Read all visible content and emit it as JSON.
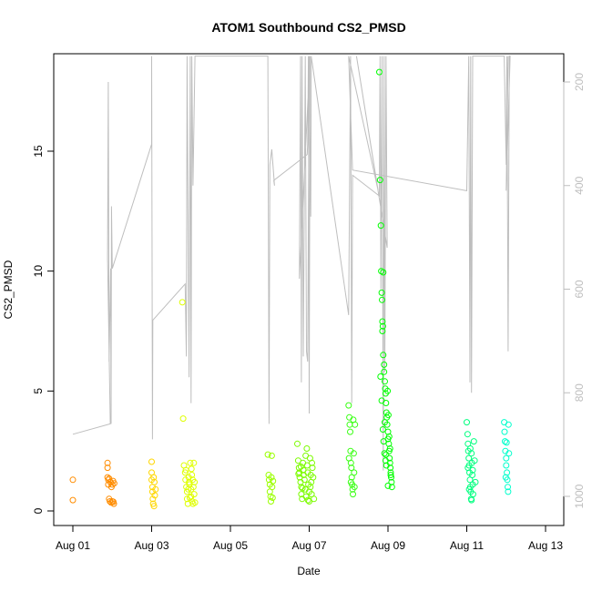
{
  "chart_data": {
    "type": "scatter",
    "title": "ATOM1 Southbound CS2_PMSD",
    "xlabel": "Date",
    "ylabel": "CS2_PMSD",
    "x_ticks": [
      "Aug 01",
      "Aug 03",
      "Aug 05",
      "Aug 07",
      "Aug 09",
      "Aug 11",
      "Aug 13"
    ],
    "x_range_days": [
      0.0,
      12.55
    ],
    "ylim": [
      0,
      19
    ],
    "y_ticks": [
      0,
      5,
      10,
      15
    ],
    "y2_ticks": [
      200,
      400,
      600,
      800,
      1000
    ],
    "y2lim": [
      1100,
      150
    ],
    "y2_color": "#bebebe",
    "grid": false,
    "series": [
      {
        "color": "#ff8c00",
        "points": [
          [
            0.0,
            1.3
          ],
          [
            0.0,
            0.45
          ],
          [
            0.88,
            2.0
          ],
          [
            0.88,
            1.8
          ],
          [
            0.88,
            1.4
          ],
          [
            0.9,
            1.3
          ],
          [
            0.9,
            1.1
          ],
          [
            0.92,
            0.5
          ],
          [
            0.94,
            0.4
          ],
          [
            0.95,
            1.2
          ],
          [
            0.97,
            0.35
          ],
          [
            0.98,
            1.0
          ],
          [
            1.0,
            0.4
          ],
          [
            1.02,
            1.25
          ],
          [
            1.04,
            0.3
          ],
          [
            1.05,
            1.15
          ],
          [
            0.92,
            1.35
          ],
          [
            0.96,
            1.2
          ],
          [
            1.0,
            1.1
          ],
          [
            1.03,
            0.38
          ]
        ]
      },
      {
        "color": "#ffd700",
        "points": [
          [
            2.0,
            2.05
          ],
          [
            2.0,
            1.6
          ],
          [
            2.0,
            1.3
          ],
          [
            2.02,
            1.0
          ],
          [
            2.02,
            0.8
          ],
          [
            2.03,
            0.5
          ],
          [
            2.04,
            0.3
          ],
          [
            2.05,
            1.4
          ],
          [
            2.06,
            0.2
          ],
          [
            2.07,
            1.2
          ],
          [
            2.08,
            0.65
          ],
          [
            2.1,
            0.9
          ]
        ]
      },
      {
        "color": "#dfff00",
        "points": [
          [
            2.78,
            8.7
          ],
          [
            2.8,
            3.85
          ],
          [
            2.82,
            1.9
          ],
          [
            2.85,
            1.6
          ],
          [
            2.86,
            1.3
          ],
          [
            2.88,
            1.0
          ],
          [
            2.9,
            0.8
          ],
          [
            2.9,
            0.5
          ],
          [
            2.92,
            0.3
          ],
          [
            2.94,
            1.4
          ],
          [
            2.95,
            1.2
          ],
          [
            2.96,
            1.1
          ],
          [
            2.98,
            2.0
          ],
          [
            3.0,
            0.9
          ],
          [
            3.0,
            0.6
          ],
          [
            3.02,
            1.5
          ],
          [
            3.03,
            0.4
          ],
          [
            3.04,
            1.3
          ],
          [
            3.05,
            0.3
          ],
          [
            3.06,
            1.0
          ],
          [
            3.07,
            2.0
          ],
          [
            3.08,
            0.7
          ],
          [
            3.09,
            1.2
          ],
          [
            3.1,
            0.35
          ],
          [
            2.87,
            1.7
          ],
          [
            2.93,
            0.9
          ],
          [
            2.97,
            0.55
          ],
          [
            3.01,
            1.75
          ]
        ]
      },
      {
        "color": "#9aff00",
        "points": [
          [
            4.95,
            2.35
          ],
          [
            4.97,
            1.5
          ],
          [
            4.98,
            1.3
          ],
          [
            5.0,
            1.1
          ],
          [
            5.0,
            0.8
          ],
          [
            5.02,
            0.6
          ],
          [
            5.03,
            0.4
          ],
          [
            5.04,
            1.4
          ],
          [
            5.05,
            2.3
          ],
          [
            5.06,
            1.0
          ],
          [
            5.07,
            0.55
          ],
          [
            5.08,
            1.25
          ]
        ]
      },
      {
        "color": "#7cfc00",
        "points": [
          [
            5.7,
            2.8
          ],
          [
            5.72,
            2.1
          ],
          [
            5.74,
            1.8
          ],
          [
            5.75,
            1.6
          ],
          [
            5.76,
            1.4
          ],
          [
            5.78,
            1.2
          ],
          [
            5.8,
            1.0
          ],
          [
            5.8,
            0.7
          ],
          [
            5.82,
            0.5
          ],
          [
            5.84,
            2.0
          ],
          [
            5.85,
            1.7
          ],
          [
            5.86,
            1.5
          ],
          [
            5.88,
            1.3
          ],
          [
            5.9,
            0.9
          ],
          [
            5.92,
            0.6
          ],
          [
            5.94,
            2.6
          ],
          [
            5.95,
            1.9
          ],
          [
            5.96,
            1.6
          ],
          [
            5.98,
            1.1
          ],
          [
            6.0,
            0.8
          ],
          [
            6.0,
            0.4
          ],
          [
            6.02,
            2.2
          ],
          [
            6.04,
            1.5
          ],
          [
            6.05,
            1.2
          ],
          [
            6.06,
            0.7
          ],
          [
            6.08,
            1.8
          ],
          [
            6.1,
            1.4
          ],
          [
            6.12,
            0.5
          ],
          [
            5.73,
            1.55
          ],
          [
            5.79,
            1.85
          ],
          [
            5.83,
            0.95
          ],
          [
            5.91,
            2.3
          ],
          [
            5.97,
            0.45
          ],
          [
            6.03,
            1.0
          ],
          [
            6.07,
            2.0
          ]
        ]
      },
      {
        "color": "#39ff14",
        "points": [
          [
            7.0,
            4.4
          ],
          [
            7.02,
            3.9
          ],
          [
            7.03,
            3.6
          ],
          [
            7.04,
            3.3
          ],
          [
            7.05,
            2.5
          ],
          [
            7.06,
            2.0
          ],
          [
            7.07,
            1.8
          ],
          [
            7.08,
            1.4
          ],
          [
            7.09,
            1.1
          ],
          [
            7.1,
            0.9
          ],
          [
            7.11,
            0.7
          ],
          [
            7.12,
            3.8
          ],
          [
            7.13,
            2.4
          ],
          [
            7.14,
            1.6
          ],
          [
            7.15,
            1.0
          ],
          [
            7.16,
            3.6
          ],
          [
            7.01,
            2.2
          ],
          [
            7.06,
            1.2
          ]
        ]
      },
      {
        "color": "#00ff00",
        "points": [
          [
            7.78,
            18.3
          ],
          [
            7.8,
            13.8
          ],
          [
            7.82,
            11.9
          ],
          [
            7.83,
            10.0
          ],
          [
            7.84,
            9.1
          ],
          [
            7.85,
            8.8
          ],
          [
            7.86,
            7.9
          ],
          [
            7.87,
            7.7
          ],
          [
            7.88,
            6.5
          ],
          [
            7.9,
            6.1
          ],
          [
            7.9,
            5.8
          ],
          [
            7.92,
            5.4
          ],
          [
            7.93,
            5.1
          ],
          [
            7.94,
            4.9
          ],
          [
            7.95,
            4.5
          ],
          [
            7.96,
            4.1
          ],
          [
            7.97,
            3.9
          ],
          [
            7.98,
            3.6
          ],
          [
            8.0,
            3.3
          ],
          [
            8.0,
            3.0
          ],
          [
            8.02,
            2.8
          ],
          [
            8.03,
            2.5
          ],
          [
            8.04,
            2.2
          ],
          [
            8.05,
            2.0
          ],
          [
            8.06,
            1.8
          ],
          [
            8.07,
            1.6
          ],
          [
            8.08,
            1.4
          ],
          [
            8.09,
            1.2
          ],
          [
            8.1,
            1.0
          ],
          [
            7.81,
            5.6
          ],
          [
            7.84,
            4.6
          ],
          [
            7.87,
            3.4
          ],
          [
            7.89,
            2.9
          ],
          [
            7.91,
            2.4
          ],
          [
            7.94,
            2.1
          ],
          [
            7.96,
            1.9
          ],
          [
            7.99,
            5.0
          ],
          [
            8.01,
            4.0
          ],
          [
            8.03,
            3.1
          ],
          [
            8.05,
            2.6
          ],
          [
            8.07,
            1.5
          ],
          [
            7.88,
            9.95
          ],
          [
            7.86,
            7.5
          ],
          [
            8.0,
            1.05
          ],
          [
            7.92,
            3.7
          ],
          [
            7.95,
            2.35
          ]
        ]
      },
      {
        "color": "#00ff7f",
        "points": [
          [
            10.0,
            3.7
          ],
          [
            10.02,
            3.2
          ],
          [
            10.03,
            2.8
          ],
          [
            10.04,
            2.5
          ],
          [
            10.05,
            2.2
          ],
          [
            10.06,
            1.9
          ],
          [
            10.07,
            1.6
          ],
          [
            10.08,
            1.3
          ],
          [
            10.09,
            1.0
          ],
          [
            10.1,
            0.8
          ],
          [
            10.11,
            0.5
          ],
          [
            10.12,
            2.4
          ],
          [
            10.13,
            2.0
          ],
          [
            10.14,
            1.5
          ],
          [
            10.15,
            1.1
          ],
          [
            10.16,
            0.7
          ],
          [
            10.18,
            2.9
          ],
          [
            10.2,
            2.1
          ],
          [
            10.22,
            1.2
          ],
          [
            10.03,
            1.8
          ],
          [
            10.06,
            0.9
          ],
          [
            10.09,
            2.6
          ],
          [
            10.12,
            0.45
          ],
          [
            10.15,
            1.7
          ]
        ]
      },
      {
        "color": "#00ffcc",
        "points": [
          [
            10.95,
            3.7
          ],
          [
            10.96,
            3.3
          ],
          [
            10.97,
            2.9
          ],
          [
            10.98,
            2.5
          ],
          [
            11.0,
            2.2
          ],
          [
            11.0,
            1.9
          ],
          [
            11.02,
            1.6
          ],
          [
            11.03,
            1.3
          ],
          [
            11.04,
            1.0
          ],
          [
            11.05,
            0.8
          ],
          [
            11.06,
            3.6
          ],
          [
            11.07,
            2.4
          ],
          [
            10.99,
            1.4
          ],
          [
            11.01,
            2.85
          ]
        ]
      }
    ],
    "overlay_line": {
      "axis": "right",
      "color": "#bebebe",
      "points": [
        [
          0.0,
          880
        ],
        [
          0.95,
          860
        ],
        [
          0.88,
          540
        ],
        [
          0.9,
          200
        ],
        [
          0.92,
          740
        ],
        [
          0.96,
          560
        ],
        [
          0.97,
          860
        ],
        [
          0.98,
          440
        ],
        [
          1.0,
          560
        ],
        [
          2.0,
          320
        ],
        [
          2.0,
          150
        ],
        [
          2.02,
          890
        ],
        [
          2.03,
          660
        ],
        [
          2.85,
          590
        ],
        [
          2.88,
          730
        ],
        [
          2.9,
          150
        ],
        [
          2.95,
          770
        ],
        [
          2.98,
          150
        ],
        [
          3.0,
          820
        ],
        [
          3.02,
          150
        ],
        [
          3.05,
          400
        ],
        [
          3.1,
          150
        ],
        [
          4.95,
          150
        ],
        [
          4.98,
          860
        ],
        [
          5.0,
          360
        ],
        [
          5.05,
          330
        ],
        [
          5.12,
          400
        ],
        [
          5.1,
          390
        ],
        [
          5.95,
          340
        ],
        [
          5.96,
          320
        ],
        [
          5.98,
          150
        ],
        [
          6.0,
          840
        ],
        [
          6.02,
          150
        ],
        [
          5.75,
          580
        ],
        [
          5.78,
          150
        ],
        [
          5.8,
          780
        ],
        [
          5.82,
          150
        ],
        [
          5.85,
          730
        ],
        [
          5.9,
          150
        ],
        [
          5.93,
          720
        ],
        [
          5.96,
          740
        ],
        [
          6.0,
          150
        ],
        [
          6.04,
          460
        ],
        [
          6.05,
          150
        ],
        [
          7.0,
          650
        ],
        [
          7.05,
          150
        ],
        [
          7.08,
          820
        ],
        [
          7.1,
          380
        ],
        [
          7.78,
          420
        ],
        [
          7.8,
          150
        ],
        [
          7.82,
          600
        ],
        [
          7.85,
          150
        ],
        [
          7.88,
          950
        ],
        [
          7.9,
          150
        ],
        [
          7.92,
          760
        ],
        [
          7.95,
          150
        ],
        [
          7.98,
          520
        ],
        [
          7.2,
          150
        ],
        [
          7.75,
          410
        ],
        [
          7.0,
          150
        ],
        [
          7.1,
          370
        ],
        [
          10.0,
          410
        ],
        [
          10.05,
          150
        ],
        [
          10.08,
          780
        ],
        [
          10.1,
          150
        ],
        [
          10.12,
          800
        ],
        [
          10.15,
          150
        ],
        [
          10.2,
          150
        ],
        [
          10.95,
          150
        ],
        [
          11.0,
          360
        ],
        [
          11.02,
          150
        ],
        [
          11.05,
          720
        ],
        [
          11.08,
          150
        ],
        [
          11.1,
          150
        ],
        [
          11.0,
          410
        ],
        [
          11.05,
          150
        ]
      ]
    }
  }
}
